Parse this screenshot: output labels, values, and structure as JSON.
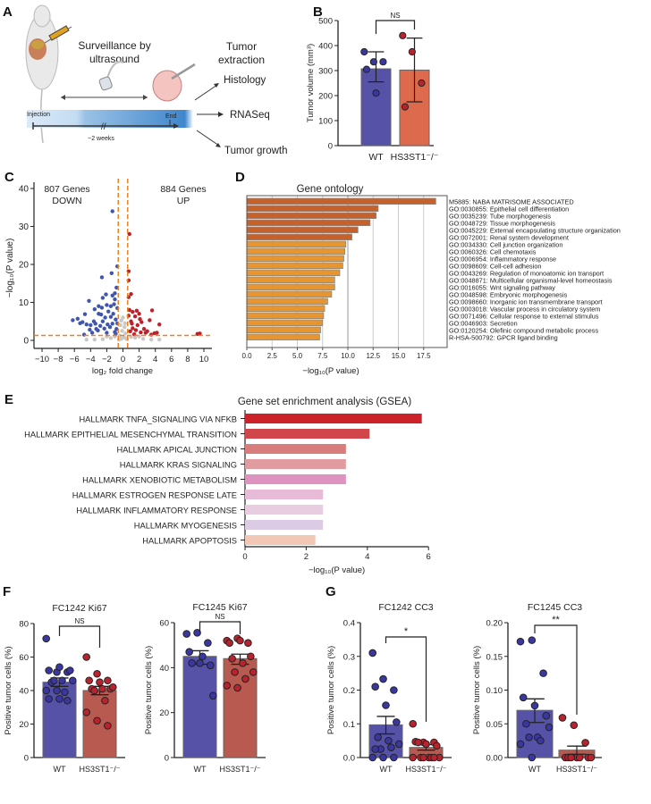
{
  "panel_labels": [
    "A",
    "B",
    "C",
    "D",
    "E",
    "F",
    "G"
  ],
  "colors": {
    "wt": "#5552a8",
    "wt_point": "#3a37a0",
    "ko": "#b85a50",
    "ko_point": "#b8232e",
    "ko_b": "#dd6a4c",
    "go_dark": "#c8602a",
    "go_light": "#e8952e",
    "volcano_down": "#3f55b0",
    "volcano_up": "#c0202a",
    "volcano_ns": "#c8c8c8",
    "threshold": "#e8822a"
  },
  "schematic": {
    "surveillance": [
      "Surveillance by",
      "ultrasound"
    ],
    "extraction": [
      "Tumor",
      "extraction"
    ],
    "injection": "Injection",
    "end": "End",
    "duration": "~2 weeks",
    "outputs": [
      "Histology",
      "RNASeq",
      "Tumor growth"
    ],
    "icons": [
      "mouse-icon",
      "syringe-icon",
      "ultrasound-probe-icon",
      "tumor-icon"
    ]
  },
  "chart_data": [
    {
      "id": "B",
      "type": "bar",
      "ylabel": "Tumor volume (mm³)",
      "ylim": [
        0,
        500
      ],
      "yticks": [
        0,
        100,
        200,
        300,
        400,
        500
      ],
      "categories": [
        "WT",
        "HS3ST1⁻/⁻"
      ],
      "means": [
        307,
        302
      ],
      "err_low": [
        255,
        175
      ],
      "err_high": [
        375,
        430
      ],
      "points": [
        [
          375,
          335,
          335,
          305,
          210
        ],
        [
          440,
          375,
          250,
          155
        ]
      ],
      "significance": "NS"
    },
    {
      "id": "C",
      "type": "scatter",
      "xlabel": "log₂ fold change",
      "ylabel": "−log₁₀(P value)",
      "xlim": [
        -10,
        10
      ],
      "ylim": [
        0,
        40
      ],
      "xticks": [
        -10,
        -8,
        -6,
        -4,
        -2,
        0,
        2,
        4,
        6,
        8,
        10
      ],
      "yticks": [
        0,
        10,
        20,
        30,
        40
      ],
      "thresholds": {
        "x": [
          -0.58,
          0.58
        ],
        "y": 1.3
      },
      "annotations": {
        "down": [
          "807 Genes",
          "DOWN"
        ],
        "up": [
          "884 Genes",
          "UP"
        ]
      },
      "down": [
        [
          -1.3,
          34
        ],
        [
          -0.7,
          19.5
        ],
        [
          -1.4,
          17.7
        ],
        [
          -2.6,
          16.6
        ],
        [
          -0.8,
          13.9
        ],
        [
          -1.0,
          12.4
        ],
        [
          -2.1,
          12.1
        ],
        [
          -1.3,
          11.8
        ],
        [
          -2.5,
          11.2
        ],
        [
          -4.2,
          10.4
        ],
        [
          -1.0,
          10.8
        ],
        [
          -2.0,
          9.3
        ],
        [
          -3.0,
          9.0
        ],
        [
          -1.5,
          9.0
        ],
        [
          -3.5,
          8.2
        ],
        [
          -2.6,
          8.6
        ],
        [
          -1.8,
          7.6
        ],
        [
          -3.0,
          7.0
        ],
        [
          -4.7,
          6.9
        ],
        [
          -5.6,
          5.7
        ],
        [
          -6.2,
          5.3
        ],
        [
          -5.0,
          4.8
        ],
        [
          -4.5,
          4.2
        ],
        [
          -4.0,
          4.0
        ],
        [
          -3.6,
          5.0
        ],
        [
          -2.2,
          6.0
        ],
        [
          -1.2,
          7.0
        ],
        [
          -0.9,
          5.5
        ],
        [
          -2.8,
          3.8
        ],
        [
          -3.3,
          3.0
        ],
        [
          -1.6,
          3.5
        ],
        [
          -0.8,
          3.0
        ],
        [
          -4.8,
          1.5
        ],
        [
          -2.0,
          2.0
        ],
        [
          -1.0,
          2.2
        ],
        [
          -3.8,
          2.0
        ],
        [
          -2.5,
          5.0
        ],
        [
          -1.3,
          4.4
        ],
        [
          -0.7,
          8.5
        ],
        [
          -1.9,
          4.2
        ],
        [
          -3.1,
          2.6
        ],
        [
          -0.9,
          1.7
        ],
        [
          -4.1,
          2.8
        ],
        [
          -2.3,
          3.1
        ],
        [
          -1.5,
          6.2
        ],
        [
          -0.7,
          4.5
        ],
        [
          -1.1,
          9.5
        ],
        [
          -2.7,
          6.8
        ],
        [
          -3.4,
          4.4
        ],
        [
          -5.3,
          4.5
        ]
      ],
      "up": [
        [
          0.8,
          28
        ],
        [
          0.7,
          18.2
        ],
        [
          0.7,
          15.8
        ],
        [
          1.0,
          12.2
        ],
        [
          0.7,
          11.4
        ],
        [
          0.8,
          8.0
        ],
        [
          1.2,
          7.5
        ],
        [
          1.7,
          7.8
        ],
        [
          3.6,
          7.9
        ],
        [
          2.0,
          7.0
        ],
        [
          1.5,
          6.3
        ],
        [
          3.3,
          5.3
        ],
        [
          2.3,
          4.8
        ],
        [
          4.5,
          4.2
        ],
        [
          1.0,
          5.0
        ],
        [
          1.8,
          4.0
        ],
        [
          2.6,
          3.0
        ],
        [
          1.2,
          3.2
        ],
        [
          3.0,
          2.4
        ],
        [
          0.9,
          2.4
        ],
        [
          2.2,
          2.1
        ],
        [
          3.9,
          1.9
        ],
        [
          4.2,
          2.0
        ],
        [
          9.2,
          1.7
        ],
        [
          9.5,
          1.8
        ],
        [
          1.4,
          1.6
        ],
        [
          0.7,
          6.5
        ],
        [
          2.8,
          2.0
        ],
        [
          1.6,
          2.7
        ],
        [
          2.1,
          5.6
        ],
        [
          3.5,
          1.5
        ],
        [
          1.1,
          4.4
        ]
      ],
      "ns": [
        [
          -0.3,
          4
        ],
        [
          0.2,
          3.5
        ],
        [
          -0.1,
          2.5
        ],
        [
          0.3,
          1.8
        ],
        [
          -0.4,
          1.2
        ],
        [
          0.1,
          0.8
        ],
        [
          -0.2,
          0.4
        ],
        [
          0.4,
          0.5
        ],
        [
          -1.5,
          0.6
        ],
        [
          1.5,
          0.7
        ],
        [
          -2.5,
          0.3
        ],
        [
          2.5,
          0.4
        ],
        [
          -3.5,
          0.2
        ],
        [
          3.5,
          0.2
        ],
        [
          -0.5,
          0.2
        ],
        [
          0.5,
          0.3
        ],
        [
          -1,
          1
        ],
        [
          1,
          0.9
        ],
        [
          -2,
          1
        ],
        [
          2,
          1
        ],
        [
          0,
          6
        ],
        [
          -0.2,
          5.2
        ],
        [
          0.25,
          4.5
        ],
        [
          4.5,
          0.2
        ],
        [
          -4.5,
          0.2
        ]
      ]
    },
    {
      "id": "D",
      "type": "bar",
      "orientation": "horizontal",
      "title": "Gene ontology",
      "xlabel": "−log₁₀(P value)",
      "xlim": [
        0,
        19.5
      ],
      "xticks": [
        0,
        2.5,
        5,
        7.5,
        10,
        12.5,
        15,
        17.5
      ],
      "grid": true,
      "categories": [
        "M5885: NABA MATRISOME ASSOCIATED",
        "GO:0030855: Epithelial cell differentiation",
        "GO:0035239: Tube morphogenesis",
        "GO:0048729: Tissue morphogenesis",
        "GO:0045229: External encapsulating structure organization",
        "GO:0072001: Renal system development",
        "GO:0034330: Cell junction organization",
        "GO:0060326: Cell chemotaxis",
        "GO:0006954: Inflammatory response",
        "GO:0098609: Cell-cell adhesion",
        "GO:0043269: Regulation of monoatomic ion transport",
        "GO:0048871: Multicellular organismal-level homeostasis",
        "GO:0016055: Wnt signaling pathway",
        "GO:0048598: Embryonic morphogenesis",
        "GO:0098660: Inorganic ion transmembrane transport",
        "GO:0003018: Vascular process in circulatory system",
        "GO:0071496: Cellular response to external stimulus",
        "GO:0046903: Secretion",
        "GO:0120254: Olefinic compound metabolic process",
        "R-HSA-500792: GPCR ligand binding"
      ],
      "values": [
        18.7,
        13.0,
        12.8,
        12.2,
        11.0,
        10.4,
        9.8,
        9.7,
        9.6,
        9.5,
        9.2,
        8.7,
        8.7,
        8.4,
        8.0,
        7.7,
        7.6,
        7.5,
        7.3,
        7.2
      ]
    },
    {
      "id": "E",
      "type": "bar",
      "orientation": "horizontal",
      "title": "Gene set enrichment analysis (GSEA)",
      "xlabel": "−log₁₀(P value)",
      "xlim": [
        0,
        6
      ],
      "xticks": [
        0,
        2,
        4,
        6
      ],
      "categories": [
        "HALLMARK TNFA_SIGNALING VIA NFKB",
        "HALLMARK EPITHELIAL MESENCHYMAL TRANSITION",
        "HALLMARK APICAL JUNCTION",
        "HALLMARK KRAS SIGNALING",
        "HALLMARK XENOBIOTIC METABOLISM",
        "HALLMARK ESTROGEN RESPONSE LATE",
        "HALLMARK INFLAMMATORY RESPONSE",
        "HALLMARK MYOGENESIS",
        "HALLMARK APOPTOSIS"
      ],
      "values": [
        5.78,
        4.07,
        3.3,
        3.3,
        3.3,
        2.55,
        2.55,
        2.55,
        2.3
      ],
      "bar_colors": [
        "#cc2229",
        "#d0464a",
        "#d87c7c",
        "#e09ca0",
        "#dd92c0",
        "#e8bcd8",
        "#e8cce0",
        "#dccbe4",
        "#f3c7b5"
      ]
    },
    {
      "id": "F1",
      "type": "bar",
      "title": "FC1242 Ki67",
      "ylabel": "Positive tumor cells (%)",
      "ylim": [
        0,
        80
      ],
      "yticks": [
        0,
        20,
        40,
        60,
        80
      ],
      "categories": [
        "WT",
        "HS3ST1⁻/⁻"
      ],
      "means": [
        45,
        40
      ],
      "err_low": [
        42.5,
        37.5
      ],
      "err_high": [
        47.5,
        42.5
      ],
      "points": [
        [
          71,
          51,
          51,
          52,
          54,
          52,
          45,
          46,
          46,
          46,
          39,
          40,
          40,
          34,
          35,
          35
        ],
        [
          60,
          50,
          46,
          46,
          45,
          41,
          41,
          41,
          42,
          40,
          34,
          27,
          22,
          19
        ]
      ],
      "significance": "NS"
    },
    {
      "id": "F2",
      "type": "bar",
      "title": "FC1245 Ki67",
      "ylabel": "Positive tumor cells (%)",
      "ylim": [
        0,
        60
      ],
      "yticks": [
        0,
        20,
        40,
        60
      ],
      "categories": [
        "WT",
        "HS3ST1⁻/⁻"
      ],
      "means": [
        45,
        44
      ],
      "err_low": [
        41.5,
        41.5
      ],
      "err_high": [
        47.5,
        46
      ],
      "points": [
        [
          55,
          55.5,
          51,
          47,
          42,
          41,
          42,
          45,
          27.5
        ],
        [
          52,
          53,
          51,
          51,
          52,
          45,
          44,
          42,
          38,
          38,
          35,
          32,
          31
        ]
      ],
      "significance": "NS"
    },
    {
      "id": "G1",
      "type": "bar",
      "title": "FC1242 CC3",
      "ylabel": "Positive tumor cells (%)",
      "ylim": [
        0,
        0.4
      ],
      "yticks": [
        0.0,
        0.1,
        0.2,
        0.3,
        0.4
      ],
      "tick_decimals": 1,
      "categories": [
        "WT",
        "HS3ST1⁻/⁻"
      ],
      "means": [
        0.097,
        0.03
      ],
      "err_low": [
        0.07,
        0.022
      ],
      "err_high": [
        0.122,
        0.038
      ],
      "points": [
        [
          0.31,
          0.233,
          0.2,
          0.21,
          0.155,
          0.105,
          0.06,
          0.05,
          0.04,
          0.025,
          0.03,
          0,
          0,
          0,
          0.025
        ],
        [
          0.1,
          0.045,
          0.045,
          0.047,
          0.04,
          0.035,
          0.045,
          0,
          0,
          0,
          0,
          0,
          0,
          0
        ]
      ],
      "significance": "*"
    },
    {
      "id": "G2",
      "type": "bar",
      "title": "FC1245 CC3",
      "ylabel": "Positive tumor cells (%)",
      "ylim": [
        0,
        0.2
      ],
      "yticks": [
        0.0,
        0.05,
        0.1,
        0.15,
        0.2
      ],
      "tick_decimals": 2,
      "categories": [
        "WT",
        "HS3ST1⁻/⁻"
      ],
      "means": [
        0.07,
        0.011
      ],
      "err_low": [
        0.052,
        0.005
      ],
      "err_high": [
        0.087,
        0.017
      ],
      "points": [
        [
          0.172,
          0.174,
          0.125,
          0.089,
          0.077,
          0.062,
          0.05,
          0.03,
          0.045,
          0.03,
          0.025,
          0.02,
          0
        ],
        [
          0.059,
          0.048,
          0.022,
          0,
          0,
          0,
          0,
          0,
          0,
          0
        ]
      ],
      "significance": "**"
    }
  ]
}
